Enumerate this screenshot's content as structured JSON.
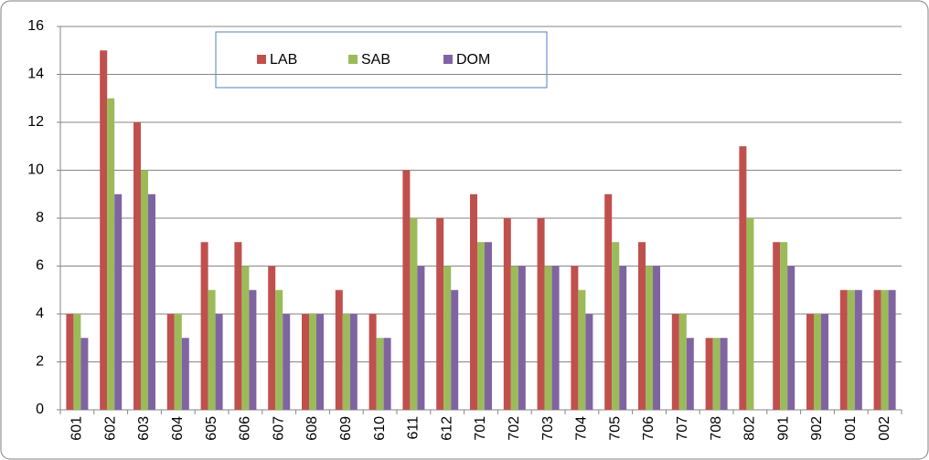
{
  "chart_data": {
    "type": "bar",
    "categories": [
      "601",
      "602",
      "603",
      "604",
      "605",
      "606",
      "607",
      "608",
      "609",
      "610",
      "611",
      "612",
      "701",
      "702",
      "703",
      "704",
      "705",
      "706",
      "707",
      "708",
      "802",
      "901",
      "902",
      "001",
      "002"
    ],
    "series": [
      {
        "name": "LAB",
        "color": "#c0504d",
        "values": [
          4,
          15,
          12,
          4,
          7,
          7,
          6,
          4,
          5,
          4,
          10,
          8,
          9,
          8,
          8,
          6,
          9,
          7,
          4,
          3,
          11,
          7,
          4,
          5,
          5
        ]
      },
      {
        "name": "SAB",
        "color": "#9bbb59",
        "values": [
          4,
          13,
          10,
          4,
          5,
          6,
          5,
          4,
          4,
          3,
          8,
          6,
          7,
          6,
          6,
          5,
          7,
          6,
          4,
          3,
          8,
          7,
          4,
          5,
          5
        ]
      },
      {
        "name": "DOM",
        "color": "#8064a2",
        "values": [
          3,
          9,
          9,
          3,
          4,
          5,
          4,
          4,
          4,
          3,
          6,
          5,
          7,
          6,
          6,
          4,
          6,
          6,
          3,
          3,
          0,
          6,
          4,
          5,
          5
        ]
      }
    ],
    "ylim": [
      0,
      16
    ],
    "yticks": [
      0,
      2,
      4,
      6,
      8,
      10,
      12,
      14,
      16
    ],
    "grid": true
  }
}
